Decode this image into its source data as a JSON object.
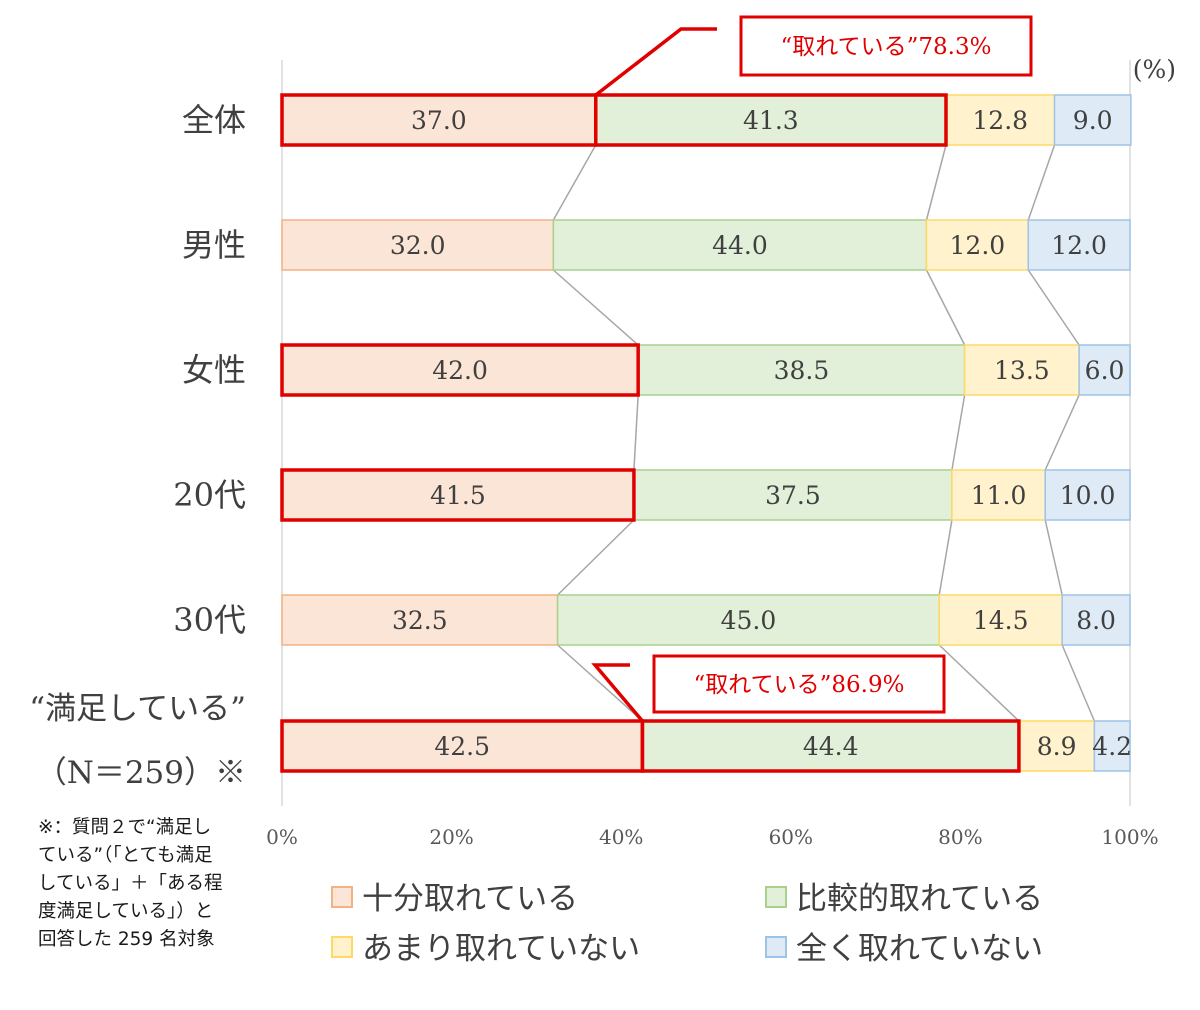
{
  "chart_data": {
    "type": "bar",
    "orientation": "horizontal",
    "stacked": true,
    "unit_label": "(%)",
    "categories": [
      "全体",
      "男性",
      "女性",
      "20代",
      "30代",
      "“満足している”\n（N＝259）※"
    ],
    "series": [
      {
        "name": "十分取れている",
        "values": [
          37.0,
          32.0,
          42.0,
          41.5,
          32.5,
          42.5
        ]
      },
      {
        "name": "比較的取れている",
        "values": [
          41.3,
          44.0,
          38.5,
          37.5,
          45.0,
          44.4
        ]
      },
      {
        "name": "あまり取れていない",
        "values": [
          12.8,
          12.0,
          13.5,
          11.0,
          14.5,
          8.9
        ]
      },
      {
        "name": "全く取れていない",
        "values": [
          9.0,
          12.0,
          6.0,
          10.0,
          8.0,
          4.2
        ]
      }
    ],
    "value_labels": [
      [
        "37.0",
        "41.3",
        "12.8",
        "9.0"
      ],
      [
        "32.0",
        "44.0",
        "12.0",
        "12.0"
      ],
      [
        "42.0",
        "38.5",
        "13.5",
        "6.0"
      ],
      [
        "41.5",
        "37.5",
        "11.0",
        "10.0"
      ],
      [
        "32.5",
        "45.0",
        "14.5",
        "8.0"
      ],
      [
        "42.5",
        "44.4",
        "8.9",
        "4.2"
      ]
    ],
    "x_ticks": [
      "0%",
      "20%",
      "40%",
      "60%",
      "80%",
      "100%"
    ],
    "xlim": [
      0,
      100
    ],
    "colors": {
      "fill": [
        "#fbe5d6",
        "#e2f0d9",
        "#fff2cc",
        "#deebf7"
      ],
      "stroke": [
        "#f4b183",
        "#a9d18e",
        "#ffd966",
        "#9dc3e6"
      ],
      "highlight": "#e00000",
      "connector": "#a6a6a6",
      "axis": "#d9d9d9"
    },
    "highlighted_segments": [
      [
        0,
        0
      ],
      [
        0,
        1
      ],
      [
        2,
        0
      ],
      [
        3,
        0
      ],
      [
        5,
        0
      ],
      [
        5,
        1
      ]
    ],
    "callouts": [
      {
        "row": 0,
        "text": "“取れている”78.3%"
      },
      {
        "row": 5,
        "text": "“取れている”86.9%"
      }
    ],
    "legend": {
      "placement": "bottom",
      "items": [
        "十分取れている",
        "比較的取れている",
        "あまり取れていない",
        "全く取れていない"
      ]
    }
  },
  "footnote": "※：質問２で“満足し\nている”（「とても満足\nしている」＋「ある程\n度満足している」）と\n回答した 259 名対象"
}
